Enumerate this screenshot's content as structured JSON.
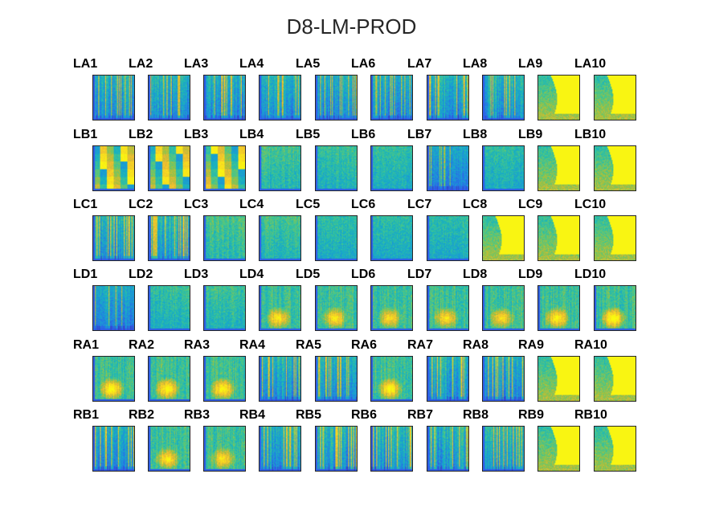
{
  "figure": {
    "title": "D8-LM-PROD"
  },
  "chart_data": {
    "type": "heatmap",
    "title": "D8-LM-PROD",
    "layout": {
      "rows": 6,
      "cols": 10
    },
    "colormap": "parula",
    "colormap_stops": [
      "#3e26a8",
      "#2e5fe9",
      "#1d8fdc",
      "#18b2c0",
      "#45c78b",
      "#a4c13c",
      "#ecb933",
      "#f9e11d",
      "#f9fb0e"
    ],
    "panels": [
      {
        "label": "LA1",
        "intensity": 0.45,
        "pattern": "striped"
      },
      {
        "label": "LA2",
        "intensity": 0.5,
        "pattern": "striped"
      },
      {
        "label": "LA3",
        "intensity": 0.48,
        "pattern": "striped"
      },
      {
        "label": "LA4",
        "intensity": 0.45,
        "pattern": "striped"
      },
      {
        "label": "LA5",
        "intensity": 0.4,
        "pattern": "striped"
      },
      {
        "label": "LA6",
        "intensity": 0.38,
        "pattern": "striped"
      },
      {
        "label": "LA7",
        "intensity": 0.5,
        "pattern": "striped"
      },
      {
        "label": "LA8",
        "intensity": 0.55,
        "pattern": "striped"
      },
      {
        "label": "LA9",
        "intensity": 0.9,
        "pattern": "saturated"
      },
      {
        "label": "LA10",
        "intensity": 0.9,
        "pattern": "saturated"
      },
      {
        "label": "LB1",
        "intensity": 0.6,
        "pattern": "blocky"
      },
      {
        "label": "LB2",
        "intensity": 0.55,
        "pattern": "blocky"
      },
      {
        "label": "LB3",
        "intensity": 0.6,
        "pattern": "blocky"
      },
      {
        "label": "LB4",
        "intensity": 0.45,
        "pattern": "diffuse"
      },
      {
        "label": "LB5",
        "intensity": 0.4,
        "pattern": "diffuse"
      },
      {
        "label": "LB6",
        "intensity": 0.35,
        "pattern": "diffuse"
      },
      {
        "label": "LB7",
        "intensity": 0.25,
        "pattern": "striped"
      },
      {
        "label": "LB8",
        "intensity": 0.3,
        "pattern": "diffuse"
      },
      {
        "label": "LB9",
        "intensity": 0.9,
        "pattern": "saturated"
      },
      {
        "label": "LB10",
        "intensity": 0.9,
        "pattern": "saturated"
      },
      {
        "label": "LC1",
        "intensity": 0.55,
        "pattern": "striped"
      },
      {
        "label": "LC2",
        "intensity": 0.55,
        "pattern": "striped"
      },
      {
        "label": "LC3",
        "intensity": 0.5,
        "pattern": "diffuse"
      },
      {
        "label": "LC4",
        "intensity": 0.45,
        "pattern": "diffuse"
      },
      {
        "label": "LC5",
        "intensity": 0.3,
        "pattern": "diffuse"
      },
      {
        "label": "LC6",
        "intensity": 0.28,
        "pattern": "diffuse"
      },
      {
        "label": "LC7",
        "intensity": 0.3,
        "pattern": "diffuse"
      },
      {
        "label": "LC8",
        "intensity": 0.65,
        "pattern": "saturated"
      },
      {
        "label": "LC9",
        "intensity": 0.9,
        "pattern": "saturated"
      },
      {
        "label": "LC10",
        "intensity": 0.9,
        "pattern": "saturated"
      },
      {
        "label": "LD1",
        "intensity": 0.35,
        "pattern": "striped"
      },
      {
        "label": "LD2",
        "intensity": 0.38,
        "pattern": "diffuse"
      },
      {
        "label": "LD3",
        "intensity": 0.42,
        "pattern": "diffuse"
      },
      {
        "label": "LD4",
        "intensity": 0.5,
        "pattern": "blob"
      },
      {
        "label": "LD5",
        "intensity": 0.48,
        "pattern": "blob"
      },
      {
        "label": "LD6",
        "intensity": 0.45,
        "pattern": "blob"
      },
      {
        "label": "LD7",
        "intensity": 0.45,
        "pattern": "blob"
      },
      {
        "label": "LD8",
        "intensity": 0.45,
        "pattern": "blob"
      },
      {
        "label": "LD9",
        "intensity": 0.55,
        "pattern": "blob"
      },
      {
        "label": "LD10",
        "intensity": 0.6,
        "pattern": "blob"
      },
      {
        "label": "RA1",
        "intensity": 0.6,
        "pattern": "blob"
      },
      {
        "label": "RA2",
        "intensity": 0.55,
        "pattern": "blob"
      },
      {
        "label": "RA3",
        "intensity": 0.55,
        "pattern": "blob"
      },
      {
        "label": "RA4",
        "intensity": 0.5,
        "pattern": "striped"
      },
      {
        "label": "RA5",
        "intensity": 0.45,
        "pattern": "striped"
      },
      {
        "label": "RA6",
        "intensity": 0.55,
        "pattern": "blob"
      },
      {
        "label": "RA7",
        "intensity": 0.55,
        "pattern": "striped"
      },
      {
        "label": "RA8",
        "intensity": 0.55,
        "pattern": "striped"
      },
      {
        "label": "RA9",
        "intensity": 0.9,
        "pattern": "saturated"
      },
      {
        "label": "RA10",
        "intensity": 0.9,
        "pattern": "saturated"
      },
      {
        "label": "RB1",
        "intensity": 0.5,
        "pattern": "striped"
      },
      {
        "label": "RB2",
        "intensity": 0.5,
        "pattern": "blob"
      },
      {
        "label": "RB3",
        "intensity": 0.45,
        "pattern": "blob"
      },
      {
        "label": "RB4",
        "intensity": 0.55,
        "pattern": "striped"
      },
      {
        "label": "RB5",
        "intensity": 0.65,
        "pattern": "striped"
      },
      {
        "label": "RB6",
        "intensity": 0.6,
        "pattern": "striped"
      },
      {
        "label": "RB7",
        "intensity": 0.62,
        "pattern": "striped"
      },
      {
        "label": "RB8",
        "intensity": 0.55,
        "pattern": "striped"
      },
      {
        "label": "RB9",
        "intensity": 0.9,
        "pattern": "saturated"
      },
      {
        "label": "RB10",
        "intensity": 0.9,
        "pattern": "saturated"
      }
    ]
  }
}
